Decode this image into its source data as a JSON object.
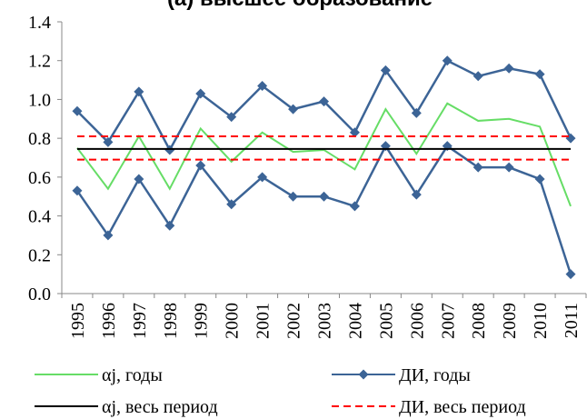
{
  "chart_data": {
    "type": "line",
    "title": "(а) высшее образование",
    "categories": [
      "1995",
      "1996",
      "1997",
      "1998",
      "1999",
      "2000",
      "2001",
      "2002",
      "2003",
      "2004",
      "2005",
      "2006",
      "2007",
      "2008",
      "2009",
      "2010",
      "2011"
    ],
    "ylim": [
      0,
      1.4
    ],
    "yticks": [
      {
        "value": 0,
        "label": "0.0"
      },
      0.2,
      0.4,
      0.6,
      0.8,
      {
        "value": 1,
        "label": "1.0"
      },
      1.2,
      1.4
    ],
    "series": [
      {
        "name": "αj, годы",
        "color": "#66dd66",
        "values": [
          0.75,
          0.54,
          0.81,
          0.54,
          0.85,
          0.68,
          0.83,
          0.73,
          0.74,
          0.64,
          0.95,
          0.72,
          0.98,
          0.89,
          0.9,
          0.86,
          0.45
        ]
      },
      {
        "name": "ДИ, годы",
        "color": "#3c6496",
        "marker": "diamond",
        "upper": [
          0.94,
          0.78,
          1.04,
          0.74,
          1.03,
          0.91,
          1.07,
          0.95,
          0.99,
          0.83,
          1.15,
          0.93,
          1.2,
          1.12,
          1.16,
          1.13,
          0.8
        ],
        "lower": [
          0.53,
          0.3,
          0.59,
          0.35,
          0.66,
          0.46,
          0.6,
          0.5,
          0.5,
          0.45,
          0.76,
          0.51,
          0.76,
          0.65,
          0.65,
          0.59,
          0.1
        ]
      },
      {
        "name": "αj, весь период",
        "color": "#000000",
        "value": 0.745
      },
      {
        "name": "ДИ, весь период",
        "color": "#ff0000",
        "dash": true,
        "upper": 0.81,
        "lower": 0.69
      }
    ]
  }
}
